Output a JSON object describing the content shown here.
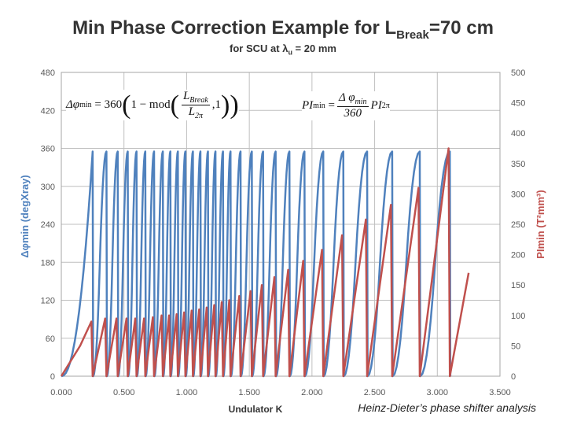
{
  "title": {
    "main": "Min Phase Correction Example for L",
    "sub": "Break",
    "tail": "=70 cm"
  },
  "subtitle": {
    "prefix": "for SCU at ",
    "lambda": "λ",
    "sub": "u",
    "tail": " = 20 mm"
  },
  "credit": "Heinz-Dieter’s phase shifter analysis",
  "formula1": {
    "lhs": "Δφ",
    "lhs_sub": "min",
    "eq": "= 360",
    "mod": "1 − mod",
    "num": "L",
    "num_sub": "Break",
    "den": "L",
    "den_sub": "2π",
    "tail": ",1"
  },
  "formula2": {
    "lhs": "PI",
    "lhs_sub": "min",
    "eq": "=",
    "num": "Δ φ",
    "num_sub": "min",
    "den": "360",
    "tail": "PI",
    "tail_sub": "2π"
  },
  "colors": {
    "phase": "#4f81bd",
    "pi": "#c0504d",
    "grid": "#bfbfbf",
    "text": "#595959"
  },
  "chart_data": {
    "type": "line",
    "xlabel": "Undulator K",
    "ylabel_left": "Δφmin (degXray)",
    "ylabel_right": "PImin (T²mm³)",
    "xlim": [
      0.0,
      3.5
    ],
    "ylim_left": [
      0,
      480
    ],
    "ylim_right": [
      0,
      500
    ],
    "x_ticks": [
      "0.000",
      "0.500",
      "1.000",
      "1.500",
      "2.000",
      "2.500",
      "3.000",
      "3.500"
    ],
    "y_ticks_left": [
      "0",
      "60",
      "120",
      "180",
      "240",
      "300",
      "360",
      "420",
      "480"
    ],
    "y_ticks_right": [
      "0",
      "50",
      "100",
      "150",
      "200",
      "250",
      "300",
      "350",
      "400",
      "450",
      "500"
    ],
    "grid": true,
    "series": [
      {
        "axis": "left",
        "color": "#4f81bd",
        "peaks_x": [
          0.25,
          0.36,
          0.45,
          0.53,
          0.6,
          0.67,
          0.74,
          0.81,
          0.87,
          0.93,
          0.99,
          1.05,
          1.11,
          1.17,
          1.23,
          1.29,
          1.35,
          1.43,
          1.52,
          1.61,
          1.71,
          1.82,
          1.94,
          2.09,
          2.25,
          2.44,
          2.64,
          2.86,
          3.1
        ],
        "peak_y": 355,
        "start": [
          0.0,
          0.0
        ]
      },
      {
        "axis": "right",
        "color": "#c0504d",
        "points": [
          [
            0.0,
            0.0
          ],
          [
            0.15,
            50
          ],
          [
            0.24,
            90
          ],
          [
            0.25,
            0
          ],
          [
            0.35,
            95
          ],
          [
            0.36,
            0
          ],
          [
            0.44,
            95
          ],
          [
            0.45,
            0
          ],
          [
            0.52,
            95
          ],
          [
            0.53,
            0
          ],
          [
            0.59,
            95
          ],
          [
            0.6,
            0
          ],
          [
            0.66,
            95
          ],
          [
            0.67,
            0
          ],
          [
            0.73,
            97
          ],
          [
            0.74,
            0
          ],
          [
            0.8,
            100
          ],
          [
            0.81,
            0
          ],
          [
            0.86,
            100
          ],
          [
            0.87,
            0
          ],
          [
            0.92,
            102
          ],
          [
            0.93,
            0
          ],
          [
            0.98,
            105
          ],
          [
            0.99,
            0
          ],
          [
            1.04,
            108
          ],
          [
            1.05,
            0
          ],
          [
            1.1,
            110
          ],
          [
            1.11,
            0
          ],
          [
            1.16,
            113
          ],
          [
            1.17,
            0
          ],
          [
            1.22,
            117
          ],
          [
            1.23,
            0
          ],
          [
            1.28,
            122
          ],
          [
            1.29,
            0
          ],
          [
            1.34,
            125
          ],
          [
            1.35,
            0
          ],
          [
            1.42,
            132
          ],
          [
            1.43,
            0
          ],
          [
            1.51,
            140
          ],
          [
            1.52,
            0
          ],
          [
            1.6,
            150
          ],
          [
            1.61,
            0
          ],
          [
            1.7,
            163
          ],
          [
            1.71,
            0
          ],
          [
            1.81,
            175
          ],
          [
            1.82,
            0
          ],
          [
            1.93,
            190
          ],
          [
            1.94,
            0
          ],
          [
            2.08,
            208
          ],
          [
            2.09,
            0
          ],
          [
            2.24,
            232
          ],
          [
            2.25,
            0
          ],
          [
            2.43,
            258
          ],
          [
            2.44,
            0
          ],
          [
            2.63,
            282
          ],
          [
            2.64,
            0
          ],
          [
            2.85,
            310
          ],
          [
            2.86,
            0
          ],
          [
            3.09,
            375
          ],
          [
            3.1,
            0
          ],
          [
            3.25,
            170
          ]
        ]
      }
    ]
  }
}
